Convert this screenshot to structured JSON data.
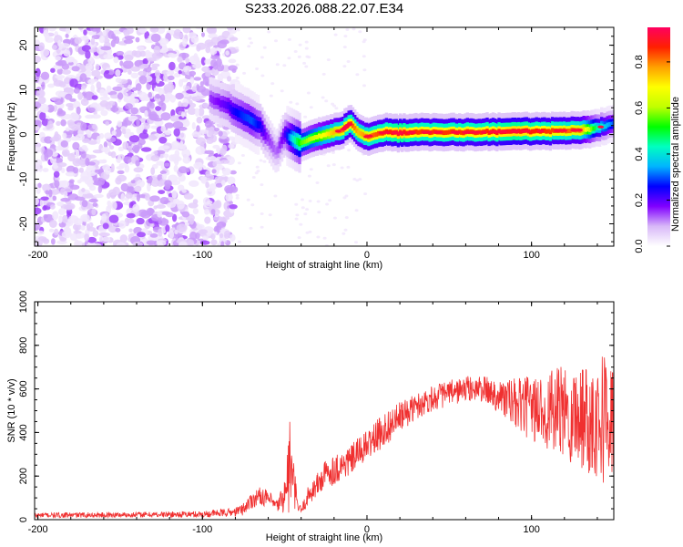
{
  "title": "S233.2026.088.22.07.E34",
  "chart_data": [
    {
      "type": "heatmap",
      "xlabel": "Height of straight line (km)",
      "ylabel": "Frequency (Hz)",
      "xlim": [
        -202,
        150
      ],
      "ylim": [
        -25,
        24
      ],
      "x_ticks": [
        -200,
        -100,
        0,
        100
      ],
      "y_ticks": [
        -20,
        -10,
        0,
        10,
        20
      ],
      "colorbar": {
        "label": "Normalized spectral amplitude",
        "range": [
          0.0,
          0.95
        ],
        "ticks": [
          0.0,
          0.2,
          0.4,
          0.6,
          0.8
        ],
        "colors": [
          "#ffffff",
          "#d8b8f8",
          "#8000ff",
          "#0000ff",
          "#00b4ff",
          "#00ffc0",
          "#00ff00",
          "#c0ff00",
          "#ffff00",
          "#ffa000",
          "#ff2000",
          "#ff0060"
        ]
      },
      "noise_region": {
        "x": [
          -202,
          -80
        ],
        "y": [
          -25,
          24
        ],
        "amplitude": 0.1
      },
      "ridge": {
        "x": [
          -95,
          -85,
          -80,
          -75,
          -70,
          -65,
          -60,
          -55,
          -50,
          -45,
          -40,
          -35,
          -30,
          -25,
          -20,
          -15,
          -10,
          -5,
          0,
          10,
          20,
          30,
          50,
          70,
          90,
          110,
          130,
          140,
          150
        ],
        "y": [
          8,
          6.5,
          5,
          4,
          3,
          2,
          -1,
          -4,
          0,
          -1,
          -2,
          -1,
          -0.5,
          0,
          0.5,
          1,
          2.5,
          0.5,
          -0.5,
          0.5,
          0.3,
          0.5,
          0.5,
          0.5,
          0.7,
          0.8,
          1,
          1.5,
          2.5
        ],
        "amplitude": [
          0.15,
          0.2,
          0.25,
          0.28,
          0.3,
          0.25,
          0.15,
          0.12,
          0.2,
          0.4,
          0.55,
          0.6,
          0.65,
          0.7,
          0.75,
          0.8,
          0.85,
          0.75,
          0.8,
          0.85,
          0.9,
          0.85,
          0.85,
          0.85,
          0.9,
          0.85,
          0.8,
          0.45,
          0.3
        ]
      }
    },
    {
      "type": "line",
      "xlabel": "Height of straight line (km)",
      "ylabel": "SNR (10 * v/v)",
      "xlim": [
        -202,
        150
      ],
      "ylim": [
        0,
        1000
      ],
      "x_ticks": [
        -200,
        -100,
        0,
        100
      ],
      "y_ticks": [
        0,
        200,
        400,
        600,
        800,
        1000
      ],
      "color": "#f03030",
      "series": [
        {
          "envelope_x": [
            -202,
            -150,
            -100,
            -80,
            -75,
            -70,
            -65,
            -60,
            -55,
            -50,
            -47,
            -45,
            -42,
            -40,
            -35,
            -30,
            -25,
            -20,
            -15,
            -10,
            -5,
            0,
            10,
            20,
            30,
            40,
            50,
            60,
            70,
            80,
            90,
            100,
            110,
            120,
            130,
            140,
            145,
            150
          ],
          "envelope_mean": [
            20,
            22,
            25,
            35,
            50,
            90,
            110,
            95,
            60,
            110,
            250,
            180,
            60,
            40,
            120,
            160,
            210,
            230,
            250,
            270,
            310,
            340,
            410,
            470,
            520,
            560,
            580,
            600,
            600,
            570,
            530,
            510,
            500,
            490,
            480,
            470,
            480,
            450
          ],
          "envelope_amp": [
            12,
            12,
            15,
            20,
            30,
            40,
            40,
            40,
            30,
            80,
            250,
            120,
            30,
            20,
            50,
            60,
            70,
            70,
            70,
            70,
            70,
            70,
            80,
            70,
            60,
            60,
            60,
            60,
            60,
            80,
            120,
            150,
            180,
            220,
            250,
            280,
            320,
            250
          ]
        }
      ]
    }
  ]
}
